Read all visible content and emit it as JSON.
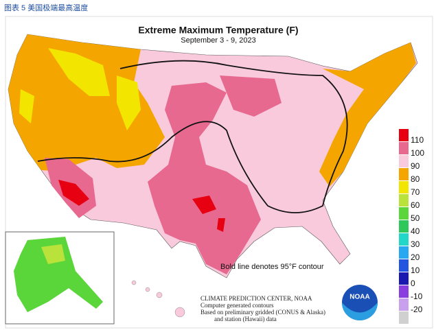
{
  "caption": "图表 5 美国极端最高温度",
  "map": {
    "title": "Extreme Maximum Temperature (F)",
    "subtitle": "September 3 - 9, 2023",
    "note": "Bold line denotes 95°F contour",
    "credits": [
      "CLIMATE PREDICTION CENTER, NOAA",
      "Computer generated contours",
      "Based on preliminary gridded (CONUS & Alaska)",
      "and station (Hawaii) data"
    ],
    "logo": "NOAA",
    "legend": [
      {
        "value": 110,
        "color": "#e60012"
      },
      {
        "value": 100,
        "color": "#e8698f"
      },
      {
        "value": 90,
        "color": "#f9c9dc"
      },
      {
        "value": 80,
        "color": "#f5a500"
      },
      {
        "value": 70,
        "color": "#f2e600"
      },
      {
        "value": 60,
        "color": "#b9e23a"
      },
      {
        "value": 50,
        "color": "#5ad53a"
      },
      {
        "value": 40,
        "color": "#2ec85a"
      },
      {
        "value": 30,
        "color": "#22d6c8"
      },
      {
        "value": 20,
        "color": "#28a8f0"
      },
      {
        "value": 10,
        "color": "#2255e0"
      },
      {
        "value": 0,
        "color": "#1a1ab0"
      },
      {
        "value": -10,
        "color": "#8a3ee0"
      },
      {
        "value": -20,
        "color": "#c8a0ee"
      },
      {
        "value": null,
        "color": "#d0d0d0"
      }
    ]
  }
}
